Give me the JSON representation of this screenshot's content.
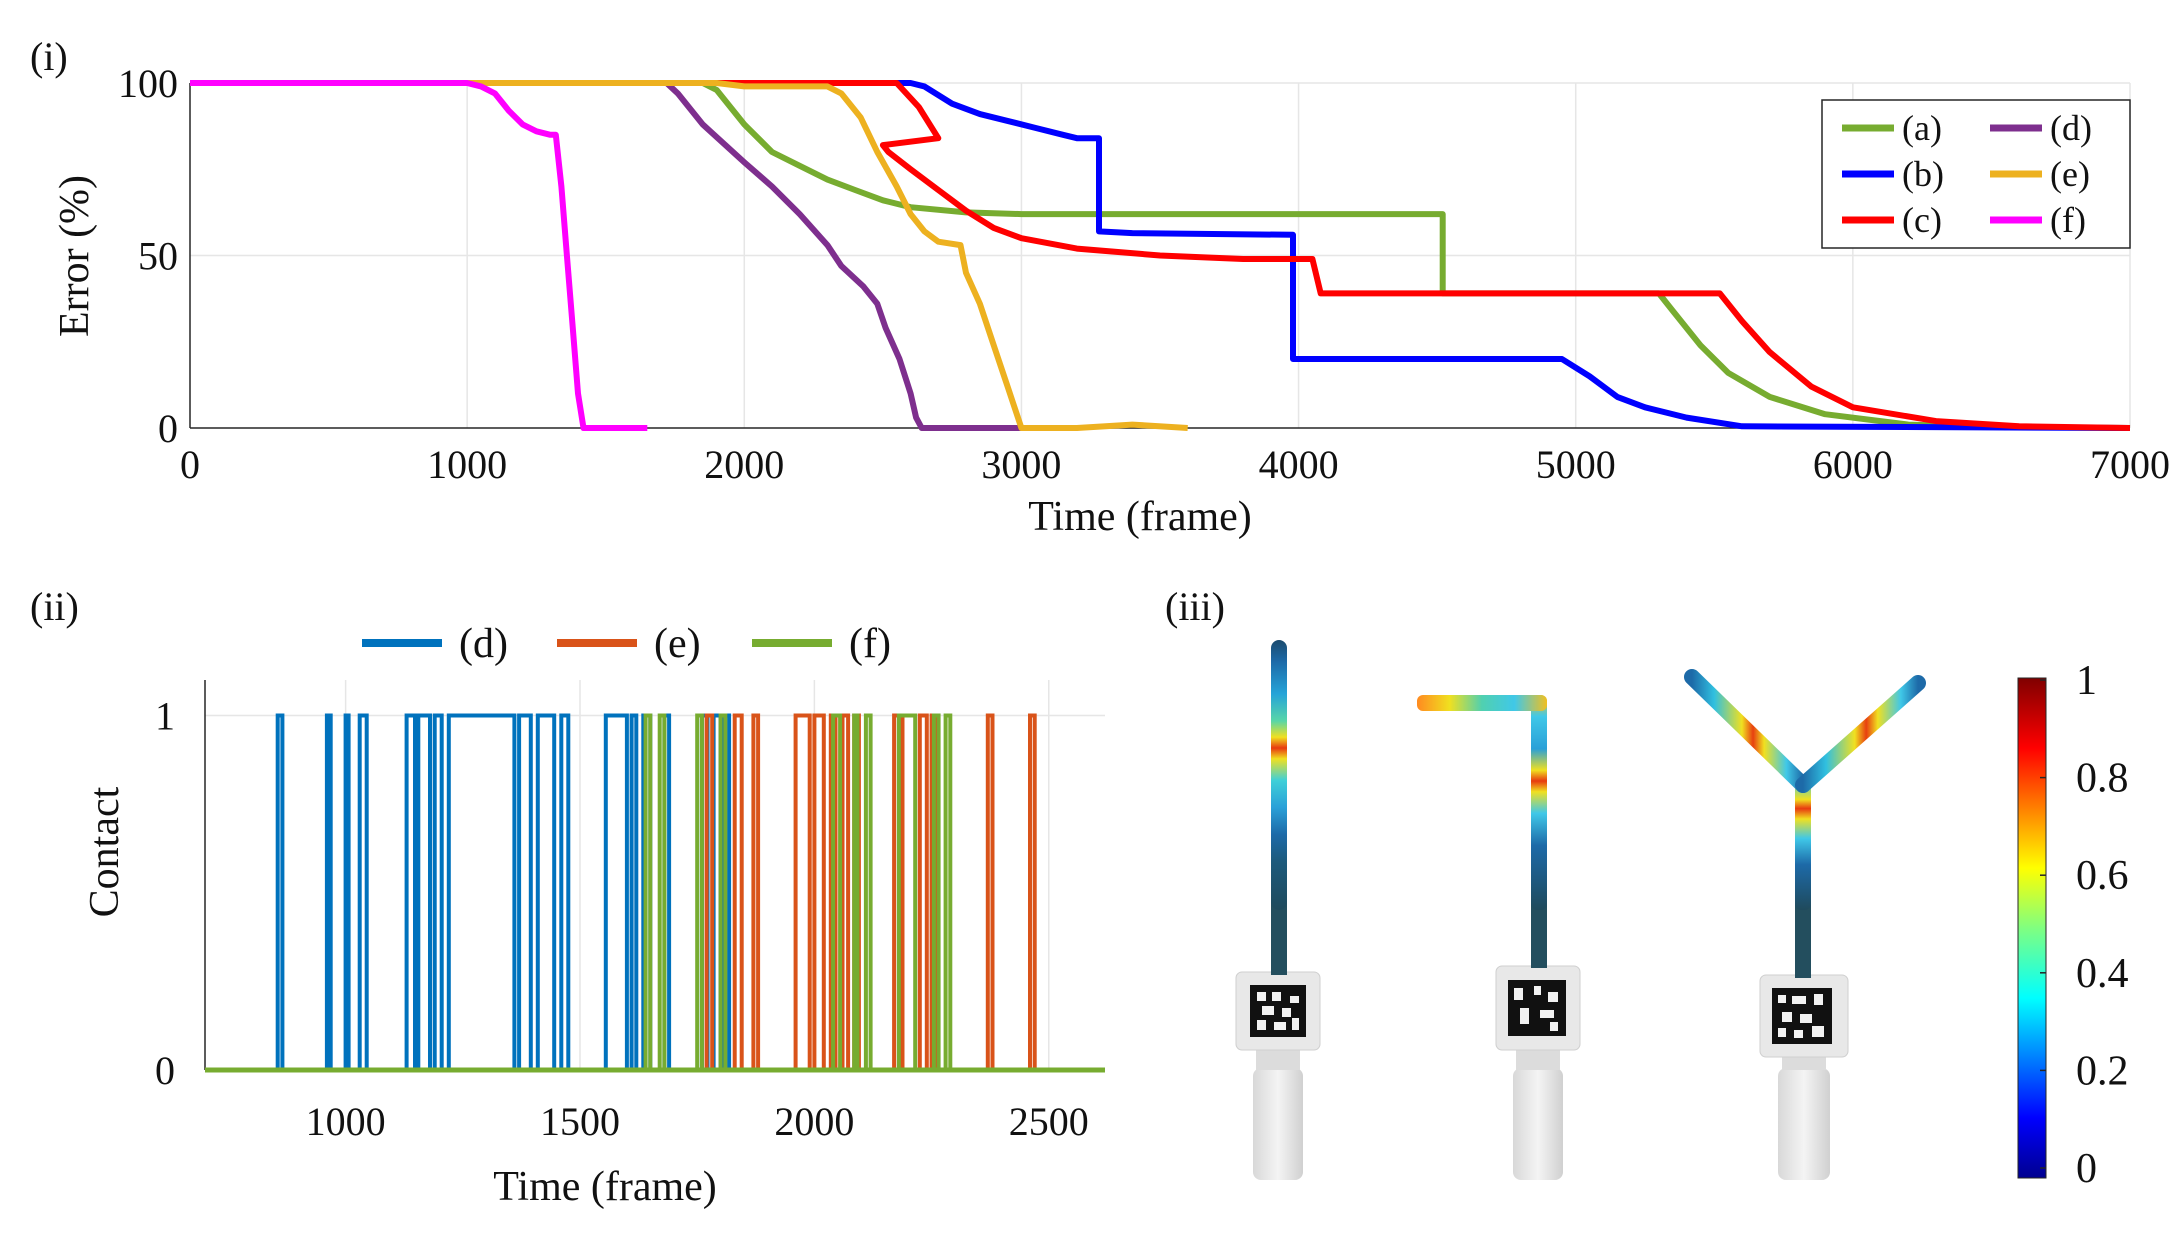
{
  "panels": {
    "i_label": "(i)",
    "ii_label": "(ii)",
    "iii_label": "(iii)"
  },
  "colors": {
    "a": "#77ac30",
    "b": "#0000ff",
    "c": "#ff0000",
    "d": "#7e2f8e",
    "e": "#edb120",
    "f": "#ff00ff",
    "contact_d": "#0072bd",
    "contact_e": "#d95319",
    "contact_f": "#77ac30",
    "grid": "#e6e6e6",
    "axis": "#262626"
  },
  "chart_data": [
    {
      "id": "error-chart",
      "type": "line",
      "title": "",
      "xlabel": "Time (frame)",
      "ylabel": "Error (%)",
      "xlim": [
        0,
        7000
      ],
      "ylim": [
        0,
        100
      ],
      "xticks": [
        0,
        1000,
        2000,
        3000,
        4000,
        5000,
        6000,
        7000
      ],
      "yticks": [
        0,
        50,
        100
      ],
      "grid": true,
      "legend_position": "top-right",
      "series": [
        {
          "key": "a",
          "name": "(a)",
          "points": [
            [
              0,
              100
            ],
            [
              1850,
              100
            ],
            [
              1900,
              98
            ],
            [
              2000,
              88
            ],
            [
              2100,
              80
            ],
            [
              2200,
              76
            ],
            [
              2300,
              72
            ],
            [
              2400,
              69
            ],
            [
              2500,
              66
            ],
            [
              2600,
              64
            ],
            [
              2800,
              62.5
            ],
            [
              3000,
              62
            ],
            [
              3500,
              62
            ],
            [
              4520,
              62
            ],
            [
              4520,
              39
            ],
            [
              5300,
              39
            ],
            [
              5350,
              34
            ],
            [
              5450,
              24
            ],
            [
              5550,
              16
            ],
            [
              5700,
              9
            ],
            [
              5900,
              4
            ],
            [
              6200,
              1
            ],
            [
              6500,
              0.3
            ],
            [
              7000,
              0
            ]
          ]
        },
        {
          "key": "b",
          "name": "(b)",
          "points": [
            [
              0,
              100
            ],
            [
              2600,
              100
            ],
            [
              2650,
              99
            ],
            [
              2750,
              94
            ],
            [
              2850,
              91
            ],
            [
              2950,
              89
            ],
            [
              3050,
              87
            ],
            [
              3150,
              85
            ],
            [
              3200,
              84
            ],
            [
              3280,
              84
            ],
            [
              3280,
              57
            ],
            [
              3400,
              56.5
            ],
            [
              3980,
              56
            ],
            [
              3980,
              20
            ],
            [
              4950,
              20
            ],
            [
              5050,
              15
            ],
            [
              5150,
              9
            ],
            [
              5250,
              6
            ],
            [
              5400,
              3
            ],
            [
              5600,
              0.5
            ],
            [
              7000,
              0
            ]
          ]
        },
        {
          "key": "c",
          "name": "(c)",
          "points": [
            [
              0,
              100
            ],
            [
              2550,
              100
            ],
            [
              2630,
              93
            ],
            [
              2700,
              84
            ],
            [
              2500,
              82
            ],
            [
              2520,
              80
            ],
            [
              2600,
              75
            ],
            [
              2700,
              69
            ],
            [
              2800,
              63
            ],
            [
              2900,
              58
            ],
            [
              3000,
              55
            ],
            [
              3200,
              52
            ],
            [
              3500,
              50
            ],
            [
              3800,
              49
            ],
            [
              4050,
              49
            ],
            [
              4080,
              39
            ],
            [
              5000,
              39
            ],
            [
              5520,
              39
            ],
            [
              5600,
              31
            ],
            [
              5700,
              22
            ],
            [
              5850,
              12
            ],
            [
              6000,
              6
            ],
            [
              6300,
              2
            ],
            [
              6600,
              0.5
            ],
            [
              7000,
              0
            ]
          ]
        },
        {
          "key": "d",
          "name": "(d)",
          "points": [
            [
              0,
              100
            ],
            [
              1720,
              100
            ],
            [
              1760,
              97
            ],
            [
              1850,
              88
            ],
            [
              2000,
              77
            ],
            [
              2100,
              70
            ],
            [
              2200,
              62
            ],
            [
              2300,
              53
            ],
            [
              2350,
              47
            ],
            [
              2430,
              41
            ],
            [
              2480,
              36
            ],
            [
              2510,
              29
            ],
            [
              2560,
              20
            ],
            [
              2600,
              10
            ],
            [
              2620,
              3
            ],
            [
              2640,
              0
            ],
            [
              3000,
              0
            ]
          ]
        },
        {
          "key": "e",
          "name": "(e)",
          "points": [
            [
              0,
              100
            ],
            [
              1900,
              100
            ],
            [
              2000,
              99
            ],
            [
              2300,
              99
            ],
            [
              2350,
              97
            ],
            [
              2420,
              90
            ],
            [
              2480,
              80
            ],
            [
              2550,
              70
            ],
            [
              2600,
              62
            ],
            [
              2650,
              57
            ],
            [
              2700,
              54
            ],
            [
              2780,
              53
            ],
            [
              2800,
              45
            ],
            [
              2850,
              36
            ],
            [
              2900,
              24
            ],
            [
              2950,
              12
            ],
            [
              3000,
              0
            ],
            [
              3200,
              0
            ],
            [
              3400,
              1
            ],
            [
              3600,
              0
            ]
          ]
        },
        {
          "key": "f",
          "name": "(f)",
          "points": [
            [
              0,
              100
            ],
            [
              1000,
              100
            ],
            [
              1050,
              99
            ],
            [
              1100,
              97
            ],
            [
              1150,
              92
            ],
            [
              1200,
              88
            ],
            [
              1250,
              86
            ],
            [
              1300,
              85
            ],
            [
              1320,
              85
            ],
            [
              1340,
              70
            ],
            [
              1360,
              50
            ],
            [
              1380,
              30
            ],
            [
              1400,
              10
            ],
            [
              1420,
              0
            ],
            [
              1650,
              0
            ]
          ]
        }
      ]
    },
    {
      "id": "contact-chart",
      "type": "bar",
      "title": "",
      "xlabel": "Time (frame)",
      "ylabel": "Contact",
      "xlim": [
        700,
        2620
      ],
      "ylim": [
        0,
        1.1
      ],
      "xticks": [
        1000,
        1500,
        2000,
        2500
      ],
      "yticks": [
        0,
        1
      ],
      "grid": true,
      "legend_position": "top-center",
      "series": [
        {
          "key": "contact_d",
          "name": "(d)",
          "pulses": [
            [
              855,
              865
            ],
            [
              960,
              968
            ],
            [
              1000,
              1005
            ],
            [
              1030,
              1045
            ],
            [
              1130,
              1148
            ],
            [
              1155,
              1180
            ],
            [
              1190,
              1205
            ],
            [
              1220,
              1360
            ],
            [
              1370,
              1395
            ],
            [
              1410,
              1445
            ],
            [
              1460,
              1475
            ],
            [
              1555,
              1600
            ],
            [
              1610,
              1620
            ],
            [
              1635,
              1650
            ],
            [
              1680,
              1690
            ],
            [
              1760,
              1772
            ],
            [
              1785,
              1800
            ],
            [
              1808,
              1818
            ]
          ]
        },
        {
          "key": "contact_e",
          "name": "(e)",
          "pulses": [
            [
              1770,
              1782
            ],
            [
              1830,
              1845
            ],
            [
              1870,
              1880
            ],
            [
              1960,
              1990
            ],
            [
              2000,
              2020
            ],
            [
              2035,
              2045
            ],
            [
              2060,
              2072
            ],
            [
              2085,
              2095
            ],
            [
              2170,
              2188
            ],
            [
              2225,
              2240
            ],
            [
              2250,
              2260
            ],
            [
              2370,
              2380
            ],
            [
              2460,
              2470
            ]
          ]
        },
        {
          "key": "contact_f",
          "name": "(f)",
          "pulses": [
            [
              1640,
              1650
            ],
            [
              1670,
              1680
            ],
            [
              1750,
              1760
            ],
            [
              1800,
              1810
            ],
            [
              2040,
              2055
            ],
            [
              2085,
              2092
            ],
            [
              2110,
              2120
            ],
            [
              2180,
              2215
            ],
            [
              2255,
              2265
            ],
            [
              2280,
              2290
            ]
          ]
        }
      ]
    },
    {
      "id": "colorbar",
      "type": "heatmap",
      "colormap": "jet",
      "range": [
        0,
        1
      ],
      "ticks": [
        "0",
        "0.2",
        "0.4",
        "0.6",
        "0.8",
        "1"
      ]
    }
  ],
  "photos": {
    "items": [
      "straight-probe",
      "bent-probe",
      "y-shaped-probe"
    ]
  }
}
